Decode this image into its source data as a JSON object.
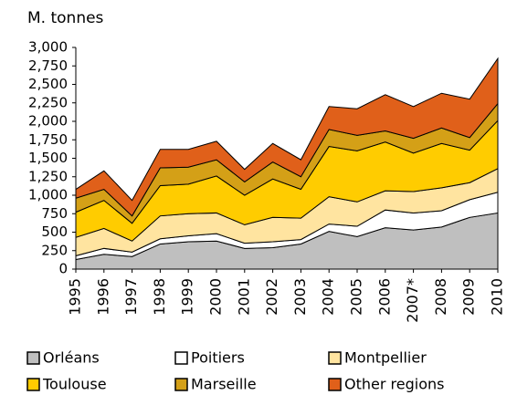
{
  "chart_data": {
    "type": "stacked_area",
    "y_label": "M. tonnes",
    "categories": [
      "1995",
      "1996",
      "1997",
      "1998",
      "1999",
      "2000",
      "2001",
      "2002",
      "2003",
      "2004",
      "2005",
      "2006",
      "2007*",
      "2008",
      "2009",
      "2010"
    ],
    "series": [
      {
        "name": "Orléans",
        "color": "#bfbfbf",
        "values": [
          130,
          200,
          170,
          340,
          370,
          380,
          280,
          290,
          340,
          510,
          440,
          560,
          530,
          570,
          700,
          760
        ]
      },
      {
        "name": "Poitiers",
        "color": "#ffffff",
        "values": [
          50,
          80,
          60,
          70,
          80,
          100,
          70,
          80,
          60,
          100,
          140,
          240,
          230,
          220,
          240,
          280
        ]
      },
      {
        "name": "Montpellier",
        "color": "#ffe4a0",
        "values": [
          250,
          270,
          150,
          310,
          300,
          280,
          250,
          330,
          290,
          370,
          330,
          260,
          290,
          310,
          230,
          320
        ]
      },
      {
        "name": "Toulouse",
        "color": "#ffcc00",
        "values": [
          340,
          380,
          240,
          410,
          400,
          500,
          400,
          520,
          390,
          680,
          690,
          660,
          520,
          600,
          440,
          650
        ]
      },
      {
        "name": "Marseille",
        "color": "#d4a017",
        "values": [
          190,
          150,
          100,
          240,
          230,
          220,
          180,
          230,
          170,
          230,
          210,
          150,
          200,
          210,
          170,
          230
        ]
      },
      {
        "name": "Other regions",
        "color": "#e0601a",
        "values": [
          120,
          250,
          210,
          250,
          240,
          250,
          170,
          250,
          230,
          310,
          360,
          490,
          430,
          470,
          520,
          610
        ]
      }
    ],
    "ylim": [
      0,
      3000
    ],
    "yticks": [
      0,
      {
        "value": 250,
        "label": "250"
      },
      {
        "value": 500,
        "label": "500"
      },
      {
        "value": 750,
        "label": "750"
      },
      {
        "value": 1000,
        "label": "1,000"
      },
      {
        "value": 1250,
        "label": "1,250"
      },
      {
        "value": 1500,
        "label": "1,500"
      },
      {
        "value": 1750,
        "label": "1,750"
      },
      {
        "value": 2000,
        "label": "2,000"
      },
      {
        "value": 2250,
        "label": "2,250"
      },
      {
        "value": 2500,
        "label": "2,500"
      },
      {
        "value": 2750,
        "label": "2,750"
      },
      {
        "value": 3000,
        "label": "3,000"
      }
    ],
    "grid": false,
    "legend": "bottom"
  }
}
